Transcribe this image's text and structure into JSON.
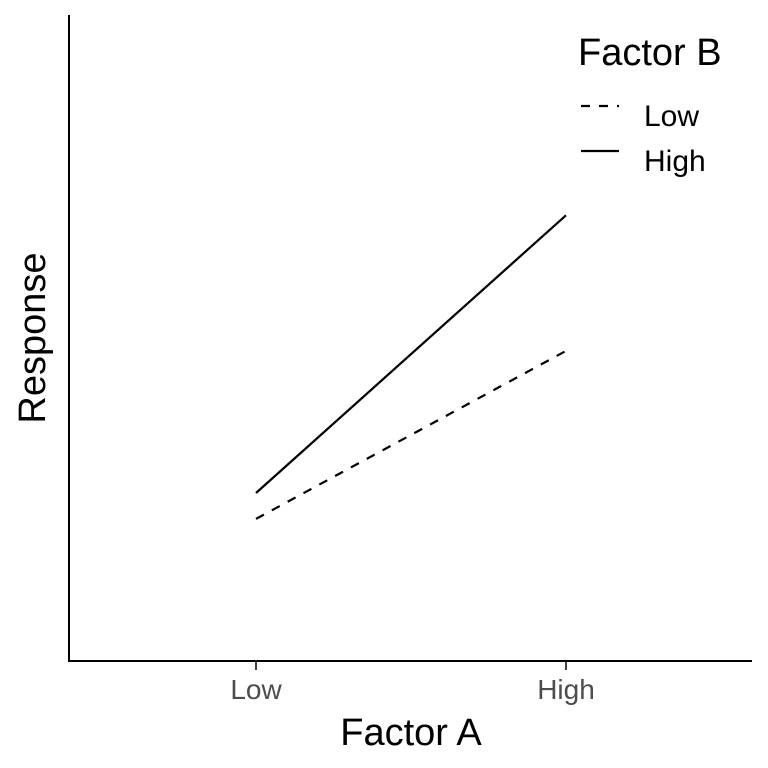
{
  "chart_data": {
    "type": "line",
    "categories": [
      "Low",
      "High"
    ],
    "xlabel": "Factor A",
    "ylabel": "Response",
    "ylim": [
      0,
      10
    ],
    "grid": false,
    "legend": {
      "title": "Factor B",
      "position": "top-right"
    },
    "series": [
      {
        "name": "Low",
        "values": [
          2.2,
          4.8
        ],
        "linestyle": "dashed",
        "color": "#000000"
      },
      {
        "name": "High",
        "values": [
          2.6,
          6.9
        ],
        "linestyle": "solid",
        "color": "#000000"
      }
    ]
  }
}
